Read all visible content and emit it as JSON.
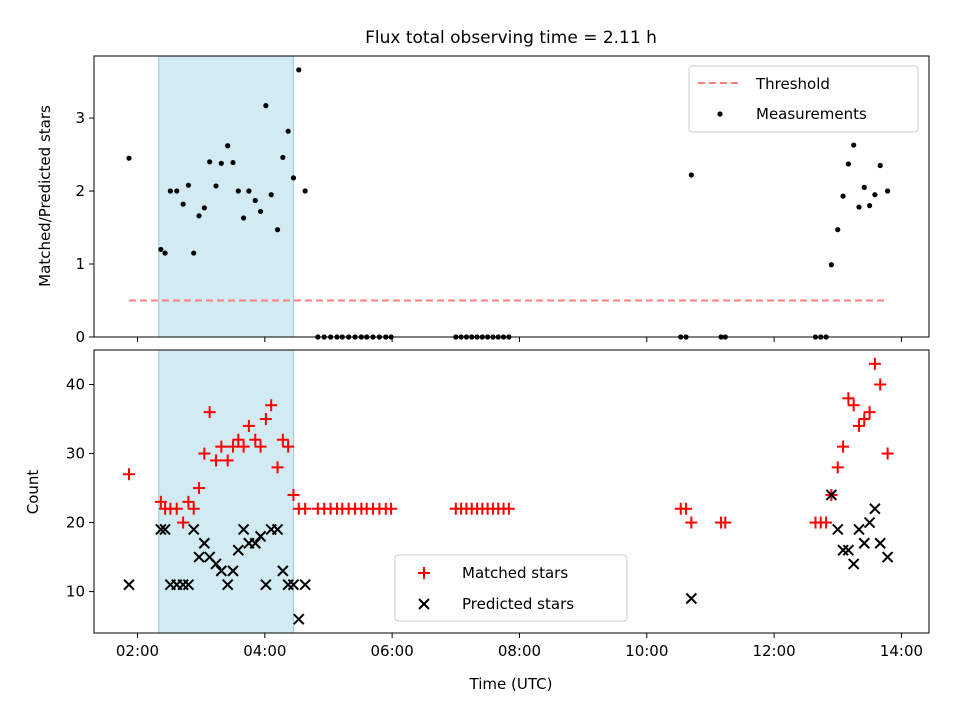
{
  "chart_data": [
    {
      "type": "scatter",
      "title": "Flux total observing time = 2.11 h",
      "xlabel": "",
      "ylabel": "Matched/Predicted stars",
      "xlim": [
        "01:19",
        "14:26"
      ],
      "ylim": [
        0,
        3.85
      ],
      "yticks": [
        0,
        1,
        2,
        3
      ],
      "grid": false,
      "legend_position": "upper right",
      "shaded_region": {
        "x": [
          "02:20",
          "04:27"
        ],
        "color": "#add8e6"
      },
      "series": [
        {
          "name": "Threshold",
          "kind": "dashed-line",
          "color": "#ff7f7f",
          "x": [
            "01:52",
            "13:45"
          ],
          "y": [
            0.5,
            0.5
          ]
        },
        {
          "name": "Measurements",
          "kind": "points",
          "color": "#000000",
          "points": [
            [
              "01:52",
              2.45
            ],
            [
              "02:22",
              1.2
            ],
            [
              "02:26",
              1.15
            ],
            [
              "02:31",
              2.0
            ],
            [
              "02:37",
              2.0
            ],
            [
              "02:43",
              1.82
            ],
            [
              "02:48",
              2.08
            ],
            [
              "02:53",
              1.15
            ],
            [
              "02:58",
              1.66
            ],
            [
              "03:03",
              1.77
            ],
            [
              "03:08",
              2.4
            ],
            [
              "03:14",
              2.07
            ],
            [
              "03:19",
              2.38
            ],
            [
              "03:25",
              2.62
            ],
            [
              "03:30",
              2.39
            ],
            [
              "03:35",
              2.0
            ],
            [
              "03:40",
              1.63
            ],
            [
              "03:45",
              2.0
            ],
            [
              "03:51",
              1.87
            ],
            [
              "03:56",
              1.72
            ],
            [
              "04:01",
              3.17
            ],
            [
              "04:06",
              1.95
            ],
            [
              "04:12",
              1.47
            ],
            [
              "04:17",
              2.46
            ],
            [
              "04:22",
              2.82
            ],
            [
              "04:27",
              2.18
            ],
            [
              "04:32",
              3.66
            ],
            [
              "04:38",
              2.0
            ],
            [
              "04:50",
              0
            ],
            [
              "04:56",
              0
            ],
            [
              "05:02",
              0
            ],
            [
              "05:08",
              0
            ],
            [
              "05:13",
              0
            ],
            [
              "05:19",
              0
            ],
            [
              "05:25",
              0
            ],
            [
              "05:31",
              0
            ],
            [
              "05:36",
              0
            ],
            [
              "05:42",
              0
            ],
            [
              "05:48",
              0
            ],
            [
              "05:54",
              0
            ],
            [
              "05:59",
              0
            ],
            [
              "07:00",
              0
            ],
            [
              "07:05",
              0
            ],
            [
              "07:10",
              0
            ],
            [
              "07:15",
              0
            ],
            [
              "07:20",
              0
            ],
            [
              "07:25",
              0
            ],
            [
              "07:30",
              0
            ],
            [
              "07:35",
              0
            ],
            [
              "07:40",
              0
            ],
            [
              "07:45",
              0
            ],
            [
              "07:50",
              0
            ],
            [
              "10:32",
              0
            ],
            [
              "10:37",
              0
            ],
            [
              "10:42",
              2.22
            ],
            [
              "11:10",
              0
            ],
            [
              "11:14",
              0
            ],
            [
              "12:39",
              0
            ],
            [
              "12:44",
              0
            ],
            [
              "12:49",
              0
            ],
            [
              "12:54",
              0.99
            ],
            [
              "13:00",
              1.47
            ],
            [
              "13:05",
              1.93
            ],
            [
              "13:10",
              2.37
            ],
            [
              "13:15",
              2.63
            ],
            [
              "13:20",
              1.78
            ],
            [
              "13:25",
              2.05
            ],
            [
              "13:30",
              1.8
            ],
            [
              "13:35",
              1.95
            ],
            [
              "13:40",
              2.35
            ],
            [
              "13:47",
              2.0
            ]
          ]
        }
      ]
    },
    {
      "type": "scatter",
      "title": "",
      "xlabel": "Time (UTC)",
      "ylabel": "Count",
      "xlim": [
        "01:19",
        "14:26"
      ],
      "ylim": [
        4,
        45
      ],
      "yticks": [
        10,
        20,
        30,
        40
      ],
      "xticks": [
        "02:00",
        "04:00",
        "06:00",
        "08:00",
        "10:00",
        "12:00",
        "14:00"
      ],
      "grid": false,
      "legend_position": "lower center",
      "shaded_region": {
        "x": [
          "02:20",
          "04:27"
        ],
        "color": "#add8e6"
      },
      "series": [
        {
          "name": "Matched stars",
          "marker": "+",
          "color": "#ff0000",
          "points": [
            [
              "01:52",
              27
            ],
            [
              "02:22",
              23
            ],
            [
              "02:26",
              22
            ],
            [
              "02:31",
              22
            ],
            [
              "02:37",
              22
            ],
            [
              "02:43",
              20
            ],
            [
              "02:48",
              23
            ],
            [
              "02:53",
              22
            ],
            [
              "02:58",
              25
            ],
            [
              "03:03",
              30
            ],
            [
              "03:08",
              36
            ],
            [
              "03:14",
              29
            ],
            [
              "03:19",
              31
            ],
            [
              "03:25",
              29
            ],
            [
              "03:30",
              31
            ],
            [
              "03:35",
              32
            ],
            [
              "03:40",
              31
            ],
            [
              "03:45",
              34
            ],
            [
              "03:51",
              32
            ],
            [
              "03:56",
              31
            ],
            [
              "04:01",
              35
            ],
            [
              "04:06",
              37
            ],
            [
              "04:12",
              28
            ],
            [
              "04:17",
              32
            ],
            [
              "04:22",
              31
            ],
            [
              "04:27",
              24
            ],
            [
              "04:32",
              22
            ],
            [
              "04:38",
              22
            ],
            [
              "04:50",
              22
            ],
            [
              "04:56",
              22
            ],
            [
              "05:02",
              22
            ],
            [
              "05:08",
              22
            ],
            [
              "05:13",
              22
            ],
            [
              "05:19",
              22
            ],
            [
              "05:25",
              22
            ],
            [
              "05:31",
              22
            ],
            [
              "05:36",
              22
            ],
            [
              "05:42",
              22
            ],
            [
              "05:48",
              22
            ],
            [
              "05:54",
              22
            ],
            [
              "05:59",
              22
            ],
            [
              "07:00",
              22
            ],
            [
              "07:05",
              22
            ],
            [
              "07:10",
              22
            ],
            [
              "07:15",
              22
            ],
            [
              "07:20",
              22
            ],
            [
              "07:25",
              22
            ],
            [
              "07:30",
              22
            ],
            [
              "07:35",
              22
            ],
            [
              "07:40",
              22
            ],
            [
              "07:45",
              22
            ],
            [
              "07:50",
              22
            ],
            [
              "10:32",
              22
            ],
            [
              "10:37",
              22
            ],
            [
              "10:42",
              20
            ],
            [
              "11:10",
              20
            ],
            [
              "11:14",
              20
            ],
            [
              "12:39",
              20
            ],
            [
              "12:44",
              20
            ],
            [
              "12:49",
              20
            ],
            [
              "12:54",
              24
            ],
            [
              "13:00",
              28
            ],
            [
              "13:05",
              31
            ],
            [
              "13:10",
              38
            ],
            [
              "13:15",
              37
            ],
            [
              "13:20",
              34
            ],
            [
              "13:25",
              35
            ],
            [
              "13:30",
              36
            ],
            [
              "13:35",
              43
            ],
            [
              "13:40",
              40
            ],
            [
              "13:47",
              30
            ]
          ]
        },
        {
          "name": "Predicted stars",
          "marker": "x",
          "color": "#000000",
          "points": [
            [
              "01:52",
              11
            ],
            [
              "02:22",
              19
            ],
            [
              "02:26",
              19
            ],
            [
              "02:31",
              11
            ],
            [
              "02:37",
              11
            ],
            [
              "02:43",
              11
            ],
            [
              "02:48",
              11
            ],
            [
              "02:53",
              19
            ],
            [
              "02:58",
              15
            ],
            [
              "03:03",
              17
            ],
            [
              "03:08",
              15
            ],
            [
              "03:14",
              14
            ],
            [
              "03:19",
              13
            ],
            [
              "03:25",
              11
            ],
            [
              "03:30",
              13
            ],
            [
              "03:35",
              16
            ],
            [
              "03:40",
              19
            ],
            [
              "03:45",
              17
            ],
            [
              "03:51",
              17
            ],
            [
              "03:56",
              18
            ],
            [
              "04:01",
              11
            ],
            [
              "04:06",
              19
            ],
            [
              "04:12",
              19
            ],
            [
              "04:17",
              13
            ],
            [
              "04:22",
              11
            ],
            [
              "04:27",
              11
            ],
            [
              "04:32",
              6
            ],
            [
              "04:38",
              11
            ],
            [
              "10:42",
              9
            ],
            [
              "12:54",
              24
            ],
            [
              "13:00",
              19
            ],
            [
              "13:05",
              16
            ],
            [
              "13:10",
              16
            ],
            [
              "13:15",
              14
            ],
            [
              "13:20",
              19
            ],
            [
              "13:25",
              17
            ],
            [
              "13:30",
              20
            ],
            [
              "13:35",
              22
            ],
            [
              "13:40",
              17
            ],
            [
              "13:47",
              15
            ]
          ]
        }
      ]
    }
  ]
}
